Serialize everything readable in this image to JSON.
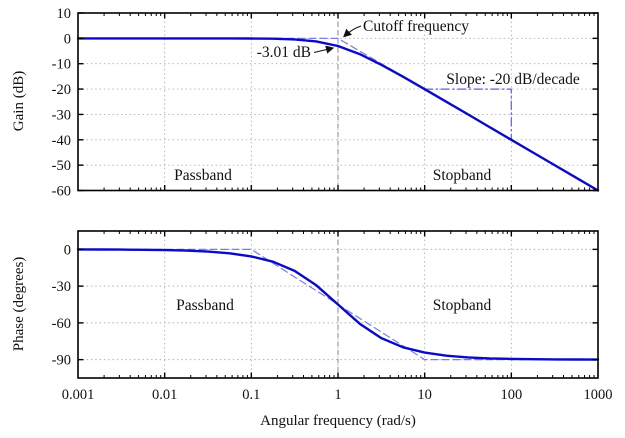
{
  "colors": {
    "curve": "#0a0ac8",
    "asymptote": "#7d7de6",
    "slope_annotation": "#5e5edc",
    "cutoff_line": "#8a8a8a",
    "grid": "#b0b0b0",
    "frame": "#000000",
    "text": "#111111"
  },
  "labels": {
    "xlabel": "Angular frequency (rad/s)",
    "gain_ylabel": "Gain (dB)",
    "phase_ylabel": "Phase (degrees)",
    "gain_passband": "Passband",
    "gain_stopband": "Stopband",
    "phase_passband": "Passband",
    "phase_stopband": "Stopband",
    "cutoff_annotation": "Cutoff frequency",
    "gain_at_cutoff_annotation": "-3.01 dB",
    "slope_annotation": "Slope: -20 dB/decade"
  },
  "chart_data": [
    {
      "type": "line",
      "name": "bode-magnitude-plot",
      "title": "",
      "xlabel": "Angular frequency (rad/s)",
      "ylabel": "Gain (dB)",
      "xscale": "log",
      "xlim": [
        0.001,
        1000
      ],
      "ylim": [
        -60,
        10
      ],
      "xticks": [
        "0.001",
        "0.01",
        "0.1",
        "1",
        "10",
        "100",
        "1000"
      ],
      "yticks": [
        10,
        0,
        -10,
        -20,
        -30,
        -40,
        -50,
        -60
      ],
      "grid": true,
      "legend": false,
      "cutoff_frequency": 1,
      "region_labels": [
        "Passband",
        "Stopband"
      ],
      "annotations": [
        "Cutoff frequency",
        "-3.01 dB",
        "Slope: -20 dB/decade"
      ],
      "series": [
        {
          "name": "gain-curve",
          "style": "solid",
          "width": 2.4,
          "color": "#0a0ac8",
          "x": [
            0.001,
            0.00178,
            0.00316,
            0.00562,
            0.01,
            0.0178,
            0.0316,
            0.0562,
            0.1,
            0.178,
            0.316,
            0.562,
            1,
            1.78,
            3.16,
            5.62,
            10,
            17.8,
            31.6,
            56.2,
            100,
            178,
            316,
            562,
            1000
          ],
          "y": [
            0,
            0,
            0,
            0,
            0,
            0,
            -0.004,
            -0.014,
            -0.043,
            -0.135,
            -0.414,
            -1.19,
            -3.01,
            -6.19,
            -10.41,
            -15.14,
            -20.04,
            -25.01,
            -30.0,
            -35.0,
            -40.0,
            -45.0,
            -50.0,
            -55.0,
            -60.0
          ]
        },
        {
          "name": "gain-asymptote",
          "style": "dashed",
          "width": 1.3,
          "color": "#7d7de6",
          "x": [
            0.001,
            1,
            1000
          ],
          "y": [
            0,
            0,
            -60
          ]
        },
        {
          "name": "slope-triangle",
          "style": "dashdot",
          "width": 1.2,
          "color": "#5e5edc",
          "x": [
            10,
            100,
            100
          ],
          "y": [
            -20,
            -20,
            -40
          ]
        }
      ]
    },
    {
      "type": "line",
      "name": "bode-phase-plot",
      "title": "",
      "xlabel": "Angular frequency (rad/s)",
      "ylabel": "Phase (degrees)",
      "xscale": "log",
      "xlim": [
        0.001,
        1000
      ],
      "ylim": [
        -105,
        15
      ],
      "xticks": [
        "0.001",
        "0.01",
        "0.1",
        "1",
        "10",
        "100",
        "1000"
      ],
      "yticks": [
        0,
        -30,
        -60,
        -90
      ],
      "grid": true,
      "legend": false,
      "cutoff_frequency": 1,
      "region_labels": [
        "Passband",
        "Stopband"
      ],
      "series": [
        {
          "name": "phase-curve",
          "style": "solid",
          "width": 2.4,
          "color": "#0a0ac8",
          "x": [
            0.001,
            0.00178,
            0.00316,
            0.00562,
            0.01,
            0.0178,
            0.0316,
            0.0562,
            0.1,
            0.178,
            0.316,
            0.562,
            1,
            1.78,
            3.16,
            5.62,
            10,
            17.8,
            31.6,
            56.2,
            100,
            178,
            316,
            562,
            1000
          ],
          "y": [
            -0.06,
            -0.1,
            -0.18,
            -0.32,
            -0.57,
            -1.02,
            -1.81,
            -3.22,
            -5.71,
            -10.08,
            -17.55,
            -29.35,
            -45,
            -60.65,
            -72.45,
            -79.92,
            -84.29,
            -86.78,
            -88.19,
            -88.98,
            -89.43,
            -89.68,
            -89.82,
            -89.9,
            -89.94
          ]
        },
        {
          "name": "phase-asymptote",
          "style": "dashed",
          "width": 1.2,
          "color": "#7d7de6",
          "x": [
            0.001,
            0.1,
            10,
            1000
          ],
          "y": [
            0,
            0,
            -90,
            -90
          ]
        }
      ]
    }
  ]
}
